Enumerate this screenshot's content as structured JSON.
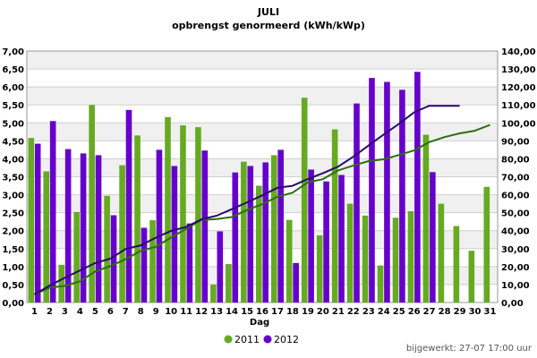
{
  "chart_data": {
    "type": "bar",
    "title": "JULI",
    "subtitle": "opbrengst genormeerd (kWh/kWp)",
    "xlabel": "Dag",
    "categories": [
      "1",
      "2",
      "3",
      "4",
      "5",
      "6",
      "7",
      "8",
      "9",
      "10",
      "11",
      "12",
      "13",
      "14",
      "15",
      "16",
      "17",
      "18",
      "19",
      "20",
      "21",
      "22",
      "23",
      "24",
      "25",
      "26",
      "27",
      "28",
      "29",
      "30",
      "31"
    ],
    "ylim": [
      0,
      7
    ],
    "y2lim": [
      0,
      140
    ],
    "y_ticks": [
      "0,00",
      "0,50",
      "1,00",
      "1,50",
      "2,00",
      "2,50",
      "3,00",
      "3,50",
      "4,00",
      "4,50",
      "5,00",
      "5,50",
      "6,00",
      "6,50",
      "7,00"
    ],
    "y2_ticks": [
      "0,00",
      "10,00",
      "20,00",
      "30,00",
      "40,00",
      "50,00",
      "60,00",
      "70,00",
      "80,00",
      "90,00",
      "100,00",
      "110,00",
      "120,00",
      "130,00",
      "140,00"
    ],
    "grid": true,
    "legend_position": "bottom",
    "series": [
      {
        "name": "2011",
        "color": "#66aa22",
        "values": [
          4.58,
          3.65,
          1.05,
          2.52,
          5.5,
          2.97,
          3.82,
          4.65,
          2.29,
          5.16,
          4.93,
          4.88,
          0.5,
          1.07,
          3.92,
          3.25,
          4.1,
          2.3,
          5.7,
          1.87,
          4.82,
          2.75,
          2.42,
          1.03,
          2.36,
          2.54,
          4.67,
          2.75,
          2.13,
          1.44,
          3.22
        ]
      },
      {
        "name": "2012",
        "color": "#6600cc",
        "values": [
          4.42,
          5.05,
          4.27,
          4.15,
          4.1,
          2.43,
          5.36,
          2.08,
          4.25,
          3.8,
          2.2,
          4.23,
          1.98,
          3.62,
          3.8,
          3.9,
          4.25,
          1.1,
          3.7,
          3.37,
          3.55,
          5.54,
          6.25,
          6.14,
          5.92,
          6.42,
          3.63,
          null,
          null,
          null,
          null
        ]
      }
    ],
    "cumulative": [
      {
        "name": "2011",
        "color": "#2e6e10",
        "axis": "right",
        "values": [
          4.58,
          8.23,
          9.28,
          11.8,
          17.3,
          20.27,
          24.09,
          28.74,
          31.03,
          36.19,
          41.12,
          46.0,
          46.5,
          47.57,
          51.49,
          54.74,
          58.84,
          61.14,
          66.84,
          68.71,
          73.53,
          76.28,
          78.7,
          79.73,
          82.09,
          84.63,
          89.3,
          92.05,
          94.18,
          95.62,
          98.84
        ]
      },
      {
        "name": "2012",
        "color": "#2a0a6e",
        "axis": "right",
        "values": [
          4.42,
          9.47,
          13.74,
          17.89,
          21.99,
          24.42,
          29.78,
          31.86,
          36.11,
          39.91,
          42.11,
          46.34,
          48.32,
          51.94,
          55.74,
          59.64,
          63.89,
          64.99,
          68.69,
          72.06,
          75.61,
          81.15,
          87.4,
          93.54,
          99.46,
          105.88,
          109.51,
          109.51,
          109.51
        ]
      }
    ]
  },
  "legend": [
    {
      "label": "2011",
      "color": "#66aa22"
    },
    {
      "label": "2012",
      "color": "#6600cc"
    }
  ],
  "footer": {
    "updated": "bijgewerkt: 27-07 17:00 uur"
  }
}
